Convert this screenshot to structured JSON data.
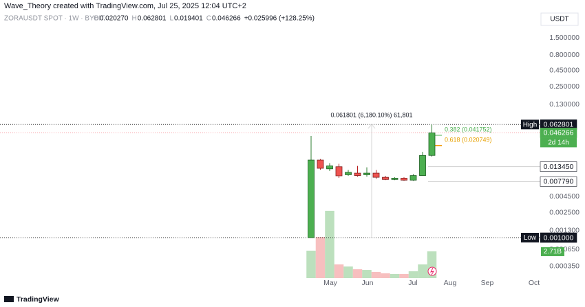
{
  "header": {
    "credit": "Wave_Theory created with TradingView.com, Jul 25, 2025 12:04 UTC+2",
    "symbol": "ZORAUSDT SPOT · 1W · BYBIT",
    "items": [
      {
        "key": "O",
        "value": "0.020270"
      },
      {
        "key": "H",
        "value": "0.062801"
      },
      {
        "key": "L",
        "value": "0.019401"
      },
      {
        "key": "C",
        "value": "0.046266"
      }
    ],
    "change": "+0.025996 (+128.25%)"
  },
  "chart_data": {
    "type": "candlestick",
    "currency": "USDT",
    "log_scale": true,
    "grid": false,
    "categories": [
      null,
      null,
      null,
      null,
      null,
      null,
      null,
      null,
      null,
      null,
      null,
      null,
      null,
      null
    ],
    "open": [
      0.001,
      0.0171,
      0.0124,
      0.0134,
      0.01,
      0.0106,
      0.01,
      0.0106,
      0.0091,
      0.0084,
      0.0088,
      0.0082,
      0.0097,
      0.02027
    ],
    "high": [
      0.0412,
      0.0177,
      0.0153,
      0.0149,
      0.0119,
      0.0138,
      0.0131,
      0.0119,
      0.0096,
      0.0091,
      0.0091,
      0.0102,
      0.0231,
      0.062801
    ],
    "low": [
      0.001,
      0.012,
      0.0115,
      0.0089,
      0.0096,
      0.0093,
      0.0093,
      0.0086,
      0.0082,
      0.0082,
      0.008,
      0.008,
      0.0096,
      0.019401
    ],
    "close": [
      0.0171,
      0.01265,
      0.0138,
      0.0096,
      0.0109,
      0.0097,
      0.0106,
      0.0091,
      0.0084,
      0.0088,
      0.0082,
      0.0097,
      0.02027,
      0.046266
    ],
    "up_color": "#4caf50",
    "down_color": "#ef5350",
    "volume": {
      "values": [
        2.78,
        4.17,
        6.81,
        1.39,
        1.18,
        0.9,
        0.83,
        0.63,
        0.49,
        0.42,
        0.42,
        0.7,
        1.39,
        2.71
      ],
      "last_label": "2.71B"
    },
    "ylim": [
      0.000227,
      4.65
    ],
    "yticks": [
      {
        "value": 1.5,
        "label": "1.500000"
      },
      {
        "value": 0.8,
        "label": "0.800000"
      },
      {
        "value": 0.45,
        "label": "0.450000"
      },
      {
        "value": 0.25,
        "label": "0.250000"
      },
      {
        "value": 0.13,
        "label": "0.130000"
      },
      {
        "value": 0.0045,
        "label": "0.004500"
      },
      {
        "value": 0.0025,
        "label": "0.002500"
      },
      {
        "value": 0.0013,
        "label": "0.001300"
      },
      {
        "value": 0.00065,
        "label": "0.000650"
      },
      {
        "value": 0.00035,
        "label": "0.000350"
      }
    ],
    "x_labels": [
      "May",
      "Jun",
      "Jul",
      "Aug",
      "Sep",
      "Oct"
    ],
    "levels": [
      {
        "name": "High",
        "value": 0.062801,
        "value_label": "0.062801"
      },
      {
        "value": 0.046266,
        "value_label": "0.046266",
        "countdown": "2d 14h"
      },
      {
        "value": 0.01345,
        "value_label": "0.013450"
      },
      {
        "value": 0.00779,
        "value_label": "0.007790"
      },
      {
        "name": "Low",
        "value": 0.001,
        "value_label": "0.001000"
      }
    ],
    "annotations": {
      "measure": "0.061801 (6,180.10%) 61,801",
      "fib_382": "0.382 (0.041752)",
      "fib_618": "0.618 (0.020749)"
    }
  },
  "footer": "TradingView"
}
